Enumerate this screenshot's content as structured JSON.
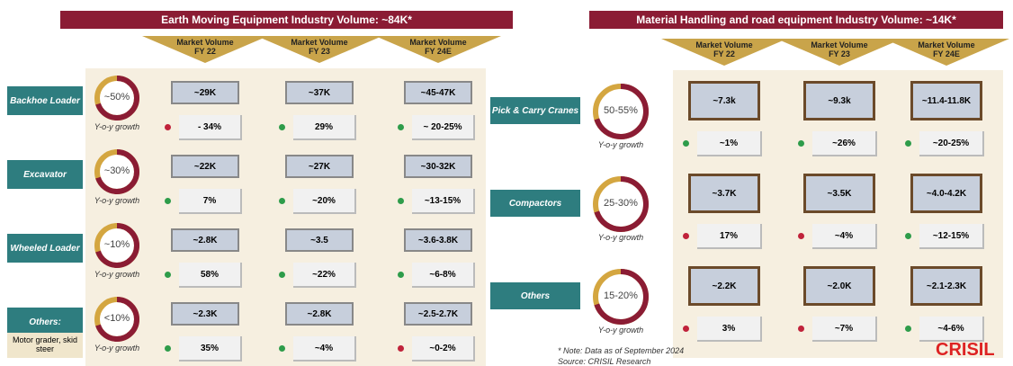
{
  "left": {
    "title": "Earth Moving Equipment Industry Volume: ~84K*",
    "columns": [
      "Market Volume FY 22",
      "Market Volume FY 23",
      "Market Volume FY 24E"
    ],
    "growth_label": "Y-o-y growth",
    "rows": [
      {
        "label": "Backhoe Loader",
        "share": "~50%",
        "volumes": [
          "~29K",
          "~37K",
          "~45-47K"
        ],
        "growth": [
          "- 34%",
          "29%",
          "~ 20-25%"
        ]
      },
      {
        "label": "Excavator",
        "share": "~30%",
        "volumes": [
          "~22K",
          "~27K",
          "~30-32K"
        ],
        "growth": [
          "7%",
          "~20%",
          "~13-15%"
        ]
      },
      {
        "label": "Wheeled Loader",
        "share": "~10%",
        "volumes": [
          "~2.8K",
          "~3.5",
          "~3.6-3.8K"
        ],
        "growth": [
          "58%",
          "~22%",
          "~6-8%"
        ]
      },
      {
        "label": "Others:",
        "share": "<10%",
        "volumes": [
          "~2.3K",
          "~2.8K",
          "~2.5-2.7K"
        ],
        "growth": [
          "35%",
          "~4%",
          "~0-2%"
        ]
      }
    ],
    "footnote": "Motor grader, skid steer"
  },
  "right": {
    "title": "Material Handling and road equipment Industry Volume: ~14K*",
    "columns": [
      "Market Volume FY 22",
      "Market Volume FY 23",
      "Market Volume FY 24E"
    ],
    "growth_label": "Y-o-y growth",
    "rows": [
      {
        "label": "Pick & Carry Cranes",
        "share": "50-55%",
        "volumes": [
          "~7.3k",
          "~9.3k",
          "~11.4-11.8K"
        ],
        "growth": [
          "~1%",
          "~26%",
          "~20-25%"
        ]
      },
      {
        "label": "Compactors",
        "share": "25-30%",
        "volumes": [
          "~3.7K",
          "~3.5K",
          "~4.0-4.2K"
        ],
        "growth": [
          "17%",
          "~4%",
          "~12-15%"
        ]
      },
      {
        "label": "Others",
        "share": "15-20%",
        "volumes": [
          "~2.2K",
          "~2.0K",
          "~2.1-2.3K"
        ],
        "growth": [
          "3%",
          "~7%",
          "~4-6%"
        ]
      }
    ]
  },
  "note": "* Note: Data as of September 2024",
  "source": "Source: CRISIL Research",
  "logo": "CRISIL"
}
